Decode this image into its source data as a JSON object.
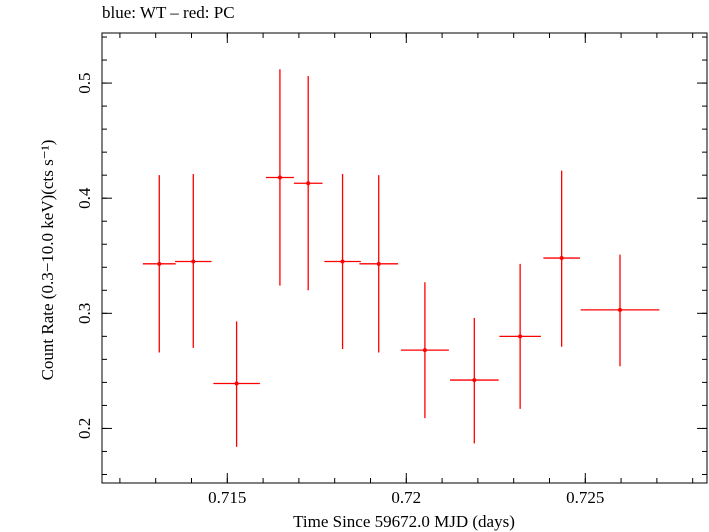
{
  "header": {
    "title": "blue: WT – red: PC"
  },
  "chart_data": {
    "type": "scatter",
    "title": "blue: WT – red: PC",
    "xlabel": "Time Since 59672.0 MJD (days)",
    "ylabel": "Count Rate (0.3−10.0 keV)(cts s⁻¹)",
    "xlim": [
      0.7115,
      0.7284
    ],
    "ylim": [
      0.1526,
      0.5435
    ],
    "x_ticks": [
      0.715,
      0.72,
      0.725
    ],
    "x_tick_labels": [
      "0.715",
      "0.72",
      "0.725"
    ],
    "y_ticks": [
      0.2,
      0.3,
      0.4,
      0.5
    ],
    "y_tick_labels": [
      "0.2",
      "0.3",
      "0.4",
      "0.5"
    ],
    "grid": false,
    "series": [
      {
        "color": "#ff0000",
        "points": [
          {
            "x": 0.7131,
            "y": 0.343,
            "xerr": 0.00046,
            "yerr_lo": 0.077,
            "yerr_hi": 0.077
          },
          {
            "x": 0.71405,
            "y": 0.345,
            "xerr": 0.00051,
            "yerr_lo": 0.075,
            "yerr_hi": 0.076
          },
          {
            "x": 0.71526,
            "y": 0.239,
            "xerr": 0.00065,
            "yerr_lo": 0.055,
            "yerr_hi": 0.054
          },
          {
            "x": 0.71647,
            "y": 0.418,
            "xerr": 0.00039,
            "yerr_lo": 0.094,
            "yerr_hi": 0.094
          },
          {
            "x": 0.71726,
            "y": 0.413,
            "xerr": 0.0004,
            "yerr_lo": 0.093,
            "yerr_hi": 0.093
          },
          {
            "x": 0.71822,
            "y": 0.345,
            "xerr": 0.00051,
            "yerr_lo": 0.076,
            "yerr_hi": 0.076
          },
          {
            "x": 0.71923,
            "y": 0.343,
            "xerr": 0.00054,
            "yerr_lo": 0.077,
            "yerr_hi": 0.077
          },
          {
            "x": 0.72052,
            "y": 0.268,
            "xerr": 0.00067,
            "yerr_lo": 0.059,
            "yerr_hi": 0.059
          },
          {
            "x": 0.7219,
            "y": 0.242,
            "xerr": 0.00068,
            "yerr_lo": 0.055,
            "yerr_hi": 0.054
          },
          {
            "x": 0.72318,
            "y": 0.28,
            "xerr": 0.00058,
            "yerr_lo": 0.063,
            "yerr_hi": 0.063
          },
          {
            "x": 0.72434,
            "y": 0.348,
            "xerr": 0.00051,
            "yerr_lo": 0.077,
            "yerr_hi": 0.076
          },
          {
            "x": 0.72597,
            "y": 0.303,
            "xerr": 0.0011,
            "yerr_lo": 0.049,
            "yerr_hi": 0.048
          }
        ]
      }
    ]
  }
}
